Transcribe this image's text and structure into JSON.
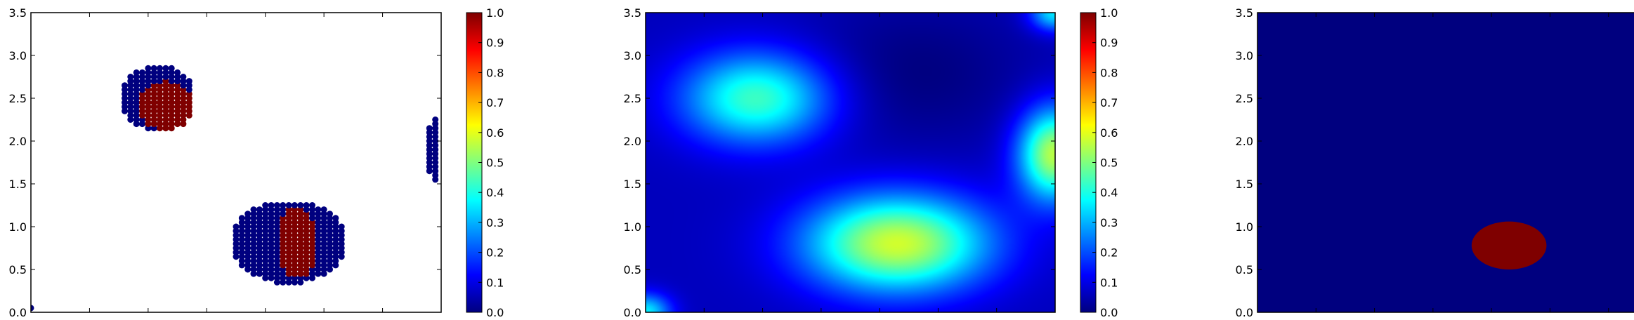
{
  "colors": {
    "jet": [
      "#00007f",
      "#0000ff",
      "#007fff",
      "#00ffff",
      "#7fff7f",
      "#ffff00",
      "#ff7f00",
      "#ff0000",
      "#7f0000"
    ],
    "background_dark": "#00007f",
    "class_low": "#00007f",
    "class_high": "#7f0000"
  },
  "chart_data": [
    {
      "type": "scatter",
      "title": "",
      "xlabel": "",
      "ylabel": "",
      "xlim": [
        0.0,
        3.5
      ],
      "ylim": [
        0.0,
        3.5
      ],
      "xticks": [
        "0.0",
        "0.5",
        "1.0",
        "1.5",
        "2.0",
        "2.5",
        "3.0",
        "3.5"
      ],
      "yticks": [
        "0.0",
        "0.5",
        "1.0",
        "1.5",
        "2.0",
        "2.5",
        "3.0",
        "3.5"
      ],
      "colorbar_ticks": [
        "0.0",
        "0.1",
        "0.2",
        "0.3",
        "0.4",
        "0.5",
        "0.6",
        "0.7",
        "0.8",
        "0.9",
        "1.0"
      ],
      "clusters": [
        {
          "center": [
            1.08,
            2.5
          ],
          "rx": 0.32,
          "ry": 0.38,
          "value": 0.0
        },
        {
          "center": [
            1.15,
            2.42
          ],
          "rx": 0.25,
          "ry": 0.28,
          "value": 1.0
        },
        {
          "center": [
            2.2,
            0.82
          ],
          "rx": 0.5,
          "ry": 0.48,
          "value": 0.0
        },
        {
          "center": [
            2.27,
            0.82
          ],
          "rx": 0.17,
          "ry": 0.42,
          "value": 1.0
        },
        {
          "center": [
            3.43,
            1.9
          ],
          "rx": 0.04,
          "ry": 0.45,
          "value": 0.0
        },
        {
          "center": [
            0.02,
            0.05
          ],
          "rx": 0.03,
          "ry": 0.05,
          "value": 0.0
        }
      ]
    },
    {
      "type": "heatmap",
      "title": "",
      "xlabel": "",
      "ylabel": "",
      "xlim": [
        0.0,
        3.5
      ],
      "ylim": [
        0.0,
        3.5
      ],
      "xticks": [
        "0.0",
        "0.5",
        "1.0",
        "1.5",
        "2.0",
        "2.5",
        "3.0",
        "3.5"
      ],
      "yticks": [
        "0.0",
        "0.5",
        "1.0",
        "1.5",
        "2.0",
        "2.5",
        "3.0",
        "3.5"
      ],
      "colorbar_ticks": [
        "0.0",
        "0.1",
        "0.2",
        "0.3",
        "0.4",
        "0.5",
        "0.6",
        "0.7",
        "0.8",
        "0.9",
        "1.0"
      ],
      "peaks": [
        {
          "center": [
            0.95,
            2.5
          ],
          "sx": 0.45,
          "sy": 0.38,
          "value": 0.38
        },
        {
          "center": [
            2.15,
            0.8
          ],
          "sx": 0.55,
          "sy": 0.4,
          "value": 0.52
        },
        {
          "center": [
            3.5,
            1.85
          ],
          "sx": 0.22,
          "sy": 0.38,
          "value": 0.5
        },
        {
          "center": [
            3.5,
            3.5
          ],
          "sx": 0.15,
          "sy": 0.15,
          "value": 0.3
        },
        {
          "center": [
            0.0,
            0.0
          ],
          "sx": 0.15,
          "sy": 0.15,
          "value": 0.3
        }
      ],
      "base": 0.06
    },
    {
      "type": "heatmap",
      "title": "",
      "xlabel": "",
      "ylabel": "",
      "xlim": [
        0.0,
        3.5
      ],
      "ylim": [
        0.0,
        3.5
      ],
      "xticks": [
        "0.0",
        "0.5",
        "1.0",
        "1.5",
        "2.0",
        "2.5",
        "3.0",
        "3.5"
      ],
      "yticks": [
        "0.0",
        "0.5",
        "1.0",
        "1.5",
        "2.0",
        "2.5",
        "3.0",
        "3.5"
      ],
      "colorbar_ticks": [
        "0.0",
        "0.1",
        "0.2",
        "0.3",
        "0.4",
        "0.5",
        "0.6",
        "0.7",
        "0.8",
        "0.9",
        "1.0"
      ],
      "regions": [
        {
          "center": [
            2.15,
            0.78
          ],
          "rx": 0.32,
          "ry": 0.28,
          "value": 1.0
        },
        {
          "center": [
            3.5,
            1.85
          ],
          "rx": 0.03,
          "ry": 0.15,
          "value": 1.0
        }
      ],
      "background_value": 0.0
    }
  ]
}
